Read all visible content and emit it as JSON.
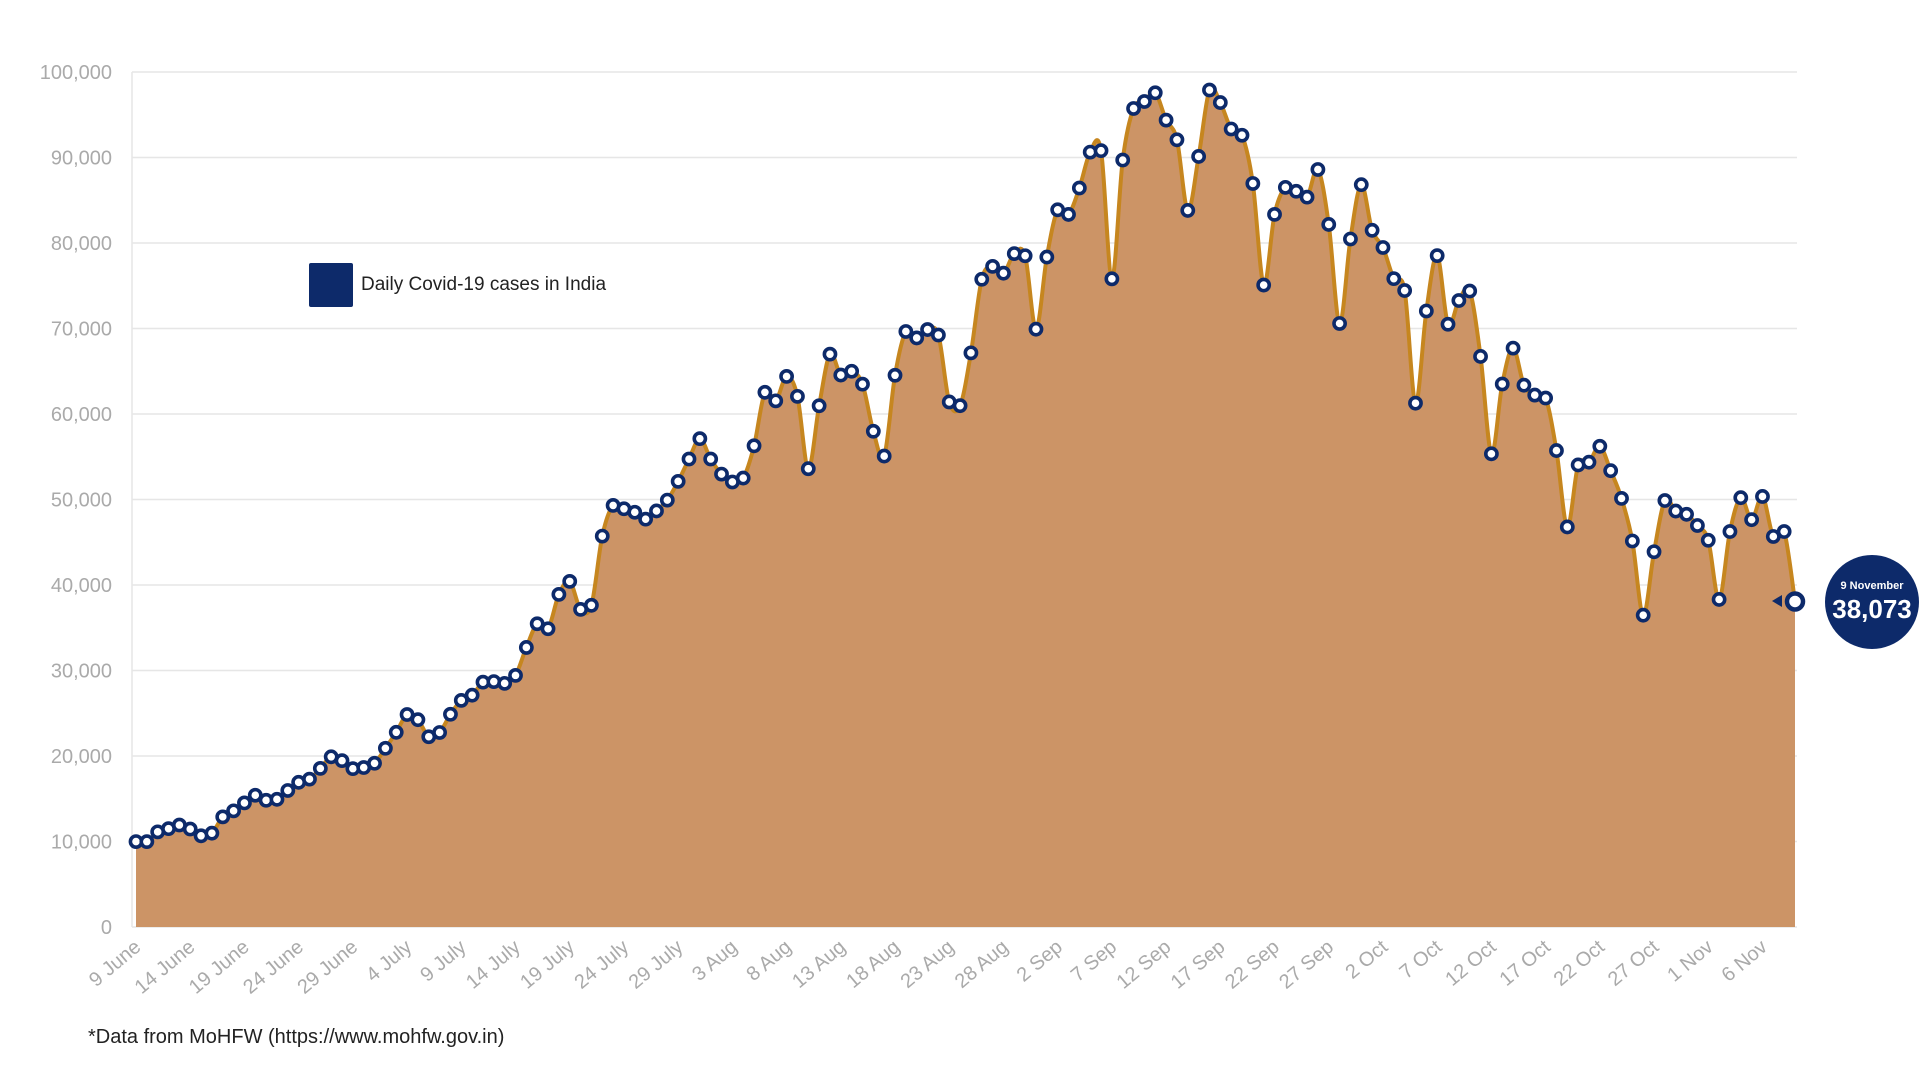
{
  "colors": {
    "area_fill": "#cc9466",
    "line": "#c6861f",
    "marker": "#0d2a6a",
    "grid": "#e6e6e6",
    "tick_text": "#aaaaaa"
  },
  "legend": {
    "label": "Daily Covid-19 cases in India",
    "color": "#0d2a6a"
  },
  "callout": {
    "date": "9 November",
    "value": "38,073"
  },
  "source_note": "*Data from MoHFW (https://www.mohfw.gov.in)",
  "chart_data": {
    "type": "area",
    "series": [
      {
        "name": "Daily Covid-19 cases in India",
        "start_date": "9 June",
        "values": [
          9987,
          9985,
          11128,
          11502,
          11929,
          11458,
          10667,
          10974,
          12881,
          13586,
          14516,
          15413,
          14821,
          14933,
          15968,
          16922,
          17296,
          18552,
          19906,
          19459,
          18522,
          18653,
          19148,
          20903,
          22771,
          24850,
          24248,
          22252,
          22752,
          24879,
          26506,
          27114,
          28637,
          28701,
          28498,
          29429,
          32695,
          35468,
          34884,
          38902,
          40425,
          37148,
          37627,
          45720,
          49310,
          48916,
          48513,
          47703,
          48661,
          49931,
          52123,
          54735,
          57118,
          54736,
          52972,
          52050,
          52509,
          56282,
          62538,
          61537,
          64399,
          62064,
          53601,
          60963,
          66999,
          64553,
          65002,
          63490,
          57981,
          55079,
          64531,
          69652,
          68898,
          69878,
          69239,
          61408,
          60975,
          67151,
          75760,
          77266,
          76472,
          78761,
          78512,
          69921,
          78357,
          83883,
          83341,
          86432,
          90632,
          90802,
          75809,
          89706,
          95735,
          96551,
          97570,
          94372,
          92071,
          83809,
          90123,
          97894,
          96424,
          93337,
          92605,
          86961,
          75083,
          83347,
          86508,
          86052,
          85362,
          88600,
          82170,
          70589,
          80472,
          86821,
          81484,
          79476,
          75829,
          74442,
          61267,
          72049,
          78524,
          70496,
          73272,
          74383,
          66732,
          55342,
          63509,
          67708,
          63371,
          62212,
          61871,
          55722,
          46790,
          54044,
          54366,
          56223,
          53370,
          50129,
          45149,
          36470,
          43893,
          49881,
          48648,
          48268,
          46963,
          45231,
          38310,
          46254,
          50210,
          47638,
          50356,
          45674,
          46253,
          38073
        ]
      }
    ],
    "x_tick_labels": [
      "9 June",
      "14 June",
      "19 June",
      "24 June",
      "29 June",
      "4 July",
      "9 July",
      "14 July",
      "19 July",
      "24 July",
      "29 July",
      "3 Aug",
      "8 Aug",
      "13 Aug",
      "18 Aug",
      "23 Aug",
      "28 Aug",
      "2 Sep",
      "7 Sep",
      "12 Sep",
      "17 Sep",
      "22 Sep",
      "27 Sep",
      "2 Oct",
      "7 Oct",
      "12 Oct",
      "17 Oct",
      "22 Oct",
      "27 Oct",
      "1 Nov",
      "6 Nov"
    ],
    "x_tick_every": 5,
    "y_ticks": [
      0,
      10000,
      20000,
      30000,
      40000,
      50000,
      60000,
      70000,
      80000,
      90000,
      100000
    ],
    "y_tick_labels": [
      "0",
      "10,000",
      "20,000",
      "30,000",
      "40,000",
      "50,000",
      "60,000",
      "70,000",
      "80,000",
      "90,000",
      "100,000"
    ],
    "ylim": [
      0,
      100000
    ],
    "title": "",
    "xlabel": "",
    "ylabel": "",
    "grid": true,
    "legend_position": "top-left"
  }
}
